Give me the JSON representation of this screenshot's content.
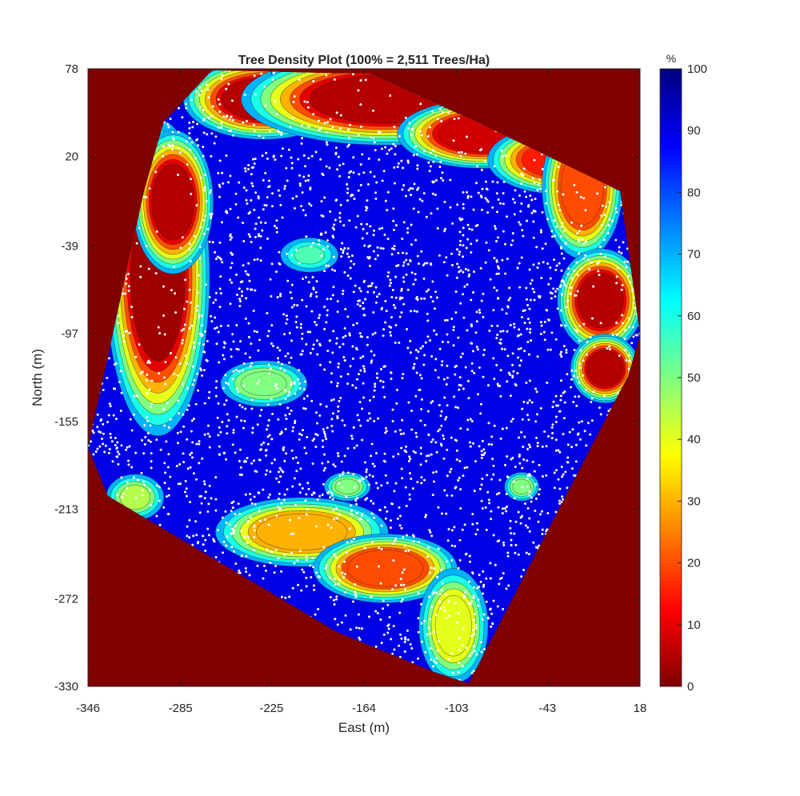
{
  "chart_data": {
    "type": "heatmap",
    "subtype": "filled-contour with scatter overlay",
    "title": "Tree Density Plot (100% = 2,511 Trees/Ha)",
    "xlabel": "East (m)",
    "ylabel": "North (m)",
    "xlim": [
      -346,
      18
    ],
    "ylim": [
      -330,
      78
    ],
    "xticks": [
      "-346",
      "-285",
      "-225",
      "-164",
      "-103",
      "-43",
      "18"
    ],
    "xtick_values": [
      -346,
      -285,
      -225,
      -164,
      -103,
      -43,
      18
    ],
    "yticks": [
      "78",
      "20",
      "-39",
      "-97",
      "-155",
      "-213",
      "-272",
      "-330"
    ],
    "ytick_values": [
      78,
      20,
      -39,
      -97,
      -155,
      -213,
      -272,
      -330
    ],
    "grid": false,
    "colormap": "jet (reversed: 0 = dark red, 100 = dark blue)",
    "colorbar": {
      "label": "%",
      "range": [
        0,
        100
      ],
      "ticks": [
        "0",
        "10",
        "20",
        "30",
        "40",
        "50",
        "60",
        "70",
        "80",
        "90",
        "100"
      ],
      "tick_values": [
        0,
        10,
        20,
        30,
        40,
        50,
        60,
        70,
        80,
        90,
        100
      ],
      "placement": "right"
    },
    "outside_value": 0,
    "interior_base_value": 90,
    "plot_boundary": [
      [
        -296,
        43
      ],
      [
        -264,
        77
      ],
      [
        -182,
        75
      ],
      [
        -161,
        75
      ],
      [
        -88,
        42
      ],
      [
        5,
        -3
      ],
      [
        18,
        -98
      ],
      [
        10,
        -125
      ],
      [
        -95,
        -328
      ],
      [
        -119,
        -320
      ],
      [
        -182,
        -294
      ],
      [
        -333,
        -204
      ],
      [
        -346,
        -172
      ],
      [
        -309,
        -3
      ]
    ],
    "low_density_regions": [
      {
        "center": [
          -230,
          58
        ],
        "radii": [
          28,
          14
        ],
        "min_value": 5
      },
      {
        "center": [
          -150,
          58
        ],
        "radii": [
          50,
          16
        ],
        "min_value": 5
      },
      {
        "center": [
          -85,
          35
        ],
        "radii": [
          30,
          12
        ],
        "min_value": 8
      },
      {
        "center": [
          -35,
          18
        ],
        "radii": [
          25,
          12
        ],
        "min_value": 15
      },
      {
        "center": [
          -300,
          -60
        ],
        "radii": [
          18,
          55
        ],
        "min_value": 3
      },
      {
        "center": [
          -290,
          -10
        ],
        "radii": [
          14,
          25
        ],
        "min_value": 5
      },
      {
        "center": [
          -20,
          0
        ],
        "radii": [
          14,
          25
        ],
        "min_value": 20
      },
      {
        "center": [
          -8,
          -75
        ],
        "radii": [
          15,
          18
        ],
        "min_value": 5
      },
      {
        "center": [
          -5,
          -120
        ],
        "radii": [
          12,
          12
        ],
        "min_value": 5
      },
      {
        "center": [
          -205,
          -228
        ],
        "radii": [
          30,
          12
        ],
        "min_value": 30
      },
      {
        "center": [
          -150,
          -252
        ],
        "radii": [
          25,
          12
        ],
        "min_value": 20
      },
      {
        "center": [
          -105,
          -290
        ],
        "radii": [
          12,
          20
        ],
        "min_value": 40
      },
      {
        "center": [
          -315,
          -205
        ],
        "radii": [
          10,
          8
        ],
        "min_value": 45
      },
      {
        "center": [
          -230,
          -130
        ],
        "radii": [
          15,
          8
        ],
        "min_value": 50
      },
      {
        "center": [
          -175,
          -198
        ],
        "radii": [
          8,
          5
        ],
        "min_value": 50
      },
      {
        "center": [
          -60,
          -198
        ],
        "radii": [
          6,
          5
        ],
        "min_value": 50
      },
      {
        "center": [
          -200,
          -45
        ],
        "radii": [
          10,
          6
        ],
        "min_value": 55
      }
    ],
    "scatter": {
      "marker": "white dots",
      "meaning": "tree locations"
    }
  }
}
